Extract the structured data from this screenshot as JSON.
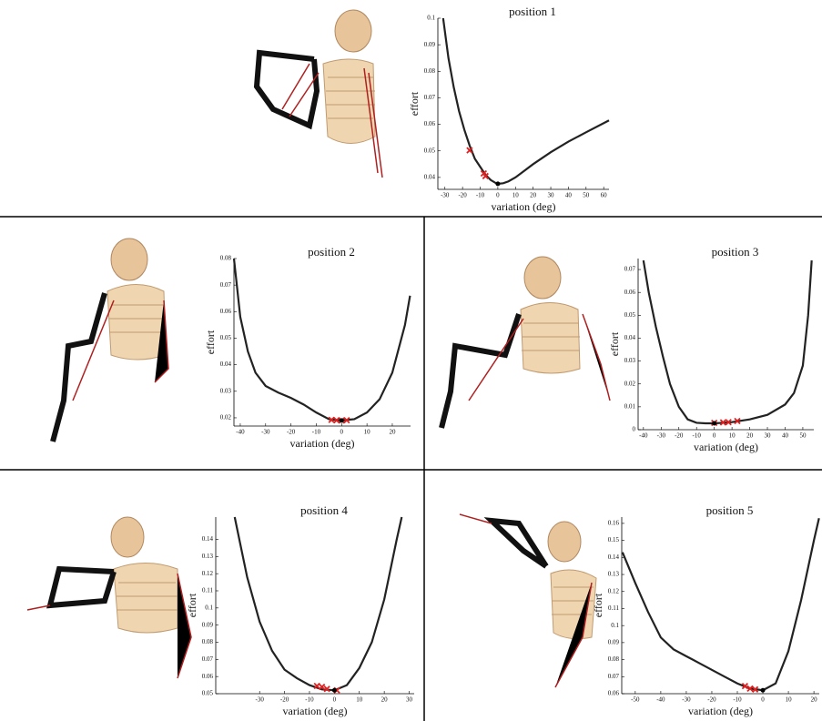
{
  "chart_data": [
    {
      "type": "line",
      "title": "position 1",
      "xlabel": "variation (deg)",
      "ylabel": "effort",
      "xlim": [
        -34,
        63
      ],
      "ylim": [
        0.0355,
        0.1
      ],
      "xticks": [
        -30,
        -20,
        -10,
        0,
        10,
        20,
        30,
        40,
        50,
        60
      ],
      "yticks": [
        0.04,
        0.05,
        0.06,
        0.07,
        0.08,
        0.09,
        0.1
      ],
      "series": [
        {
          "color": "#222222",
          "marker": "line",
          "x": [
            -31,
            -28,
            -25,
            -22,
            -19,
            -16,
            -13,
            -10,
            -7,
            -4,
            -1,
            0,
            3,
            6,
            10,
            15,
            20,
            30,
            40,
            50,
            63
          ],
          "values": [
            0.1,
            0.085,
            0.074,
            0.065,
            0.058,
            0.052,
            0.047,
            0.044,
            0.041,
            0.039,
            0.0378,
            0.0376,
            0.0378,
            0.0385,
            0.04,
            0.0425,
            0.045,
            0.0495,
            0.0535,
            0.057,
            0.0615
          ]
        },
        {
          "color": "#e02020",
          "marker": "cross",
          "x": [
            -16,
            -8,
            -7
          ],
          "values": [
            0.0502,
            0.0415,
            0.0405
          ]
        },
        {
          "color": "#000000",
          "marker": "dot",
          "x": [
            0
          ],
          "values": [
            0.0376
          ]
        }
      ]
    },
    {
      "type": "line",
      "title": "position 2",
      "xlabel": "variation (deg)",
      "ylabel": "effort",
      "xlim": [
        -42.5,
        27.2
      ],
      "ylim": [
        0.0169,
        0.08
      ],
      "xticks": [
        -40,
        -30,
        -20,
        -10,
        0,
        10,
        20
      ],
      "yticks": [
        0.02,
        0.03,
        0.04,
        0.05,
        0.06,
        0.07,
        0.08
      ],
      "series": [
        {
          "color": "#222222",
          "marker": "line",
          "x": [
            -42.5,
            -40,
            -37,
            -34,
            -30,
            -25,
            -20,
            -15,
            -10,
            -5,
            0,
            5,
            10,
            15,
            20,
            25,
            27
          ],
          "values": [
            0.08,
            0.058,
            0.045,
            0.037,
            0.032,
            0.0295,
            0.0275,
            0.025,
            0.022,
            0.0195,
            0.019,
            0.0195,
            0.022,
            0.027,
            0.037,
            0.055,
            0.066
          ]
        },
        {
          "color": "#e02020",
          "marker": "cross",
          "x": [
            -4,
            -2,
            0,
            2
          ],
          "values": [
            0.0192,
            0.0191,
            0.019,
            0.0191
          ]
        },
        {
          "color": "#000000",
          "marker": "dot",
          "x": [
            0
          ],
          "values": [
            0.019
          ]
        }
      ]
    },
    {
      "type": "line",
      "title": "position 3",
      "xlabel": "variation (deg)",
      "ylabel": "effort",
      "xlim": [
        -43,
        56.2
      ],
      "ylim": [
        0,
        0.0748
      ],
      "xticks": [
        -40,
        -30,
        -20,
        -10,
        0,
        10,
        20,
        30,
        40,
        50
      ],
      "yticks": [
        0,
        0.01,
        0.02,
        0.03,
        0.04,
        0.05,
        0.06,
        0.07
      ],
      "series": [
        {
          "color": "#222222",
          "marker": "line",
          "x": [
            -40,
            -37,
            -33,
            -29,
            -25,
            -20,
            -15,
            -10,
            -5,
            0,
            5,
            10,
            20,
            30,
            40,
            45,
            50,
            53,
            55
          ],
          "values": [
            0.074,
            0.06,
            0.045,
            0.032,
            0.02,
            0.01,
            0.0045,
            0.003,
            0.0028,
            0.0028,
            0.003,
            0.0033,
            0.0045,
            0.0065,
            0.011,
            0.016,
            0.028,
            0.05,
            0.074
          ]
        },
        {
          "color": "#e02020",
          "marker": "cross",
          "x": [
            0,
            5,
            8,
            13
          ],
          "values": [
            0.003,
            0.0032,
            0.0033,
            0.0038
          ]
        },
        {
          "color": "#000000",
          "marker": "dot",
          "x": [
            0
          ],
          "values": [
            0.0028
          ]
        }
      ]
    },
    {
      "type": "line",
      "title": "position 4",
      "xlabel": "variation (deg)",
      "ylabel": "effort",
      "xlim": [
        -47.6,
        32
      ],
      "ylim": [
        0.05,
        0.153
      ],
      "xticks": [
        -30,
        -20,
        -10,
        0,
        10,
        20,
        30
      ],
      "yticks": [
        0.05,
        0.06,
        0.07,
        0.08,
        0.09,
        0.1,
        0.11,
        0.12,
        0.13,
        0.14
      ],
      "series": [
        {
          "color": "#222222",
          "marker": "line",
          "x": [
            -40,
            -35,
            -30,
            -25,
            -20,
            -15,
            -10,
            -5,
            0,
            5,
            10,
            15,
            20,
            25,
            27
          ],
          "values": [
            0.153,
            0.118,
            0.092,
            0.075,
            0.064,
            0.059,
            0.055,
            0.0525,
            0.052,
            0.055,
            0.065,
            0.08,
            0.105,
            0.14,
            0.153
          ]
        },
        {
          "color": "#e02020",
          "marker": "cross",
          "x": [
            -7,
            -5,
            -3,
            1
          ],
          "values": [
            0.0545,
            0.054,
            0.0528,
            0.052
          ]
        },
        {
          "color": "#000000",
          "marker": "dot",
          "x": [
            0
          ],
          "values": [
            0.052
          ]
        }
      ]
    },
    {
      "type": "line",
      "title": "position 5",
      "xlabel": "variation (deg)",
      "ylabel": "effort",
      "xlim": [
        -55.3,
        22.1
      ],
      "ylim": [
        0.06,
        0.1637
      ],
      "xticks": [
        -50,
        -40,
        -30,
        -20,
        -10,
        0,
        10,
        20
      ],
      "yticks": [
        0.06,
        0.07,
        0.08,
        0.09,
        0.1,
        0.11,
        0.12,
        0.13,
        0.14,
        0.15,
        0.16
      ],
      "series": [
        {
          "color": "#222222",
          "marker": "line",
          "x": [
            -55,
            -50,
            -45,
            -40,
            -35,
            -30,
            -25,
            -20,
            -15,
            -10,
            -5,
            0,
            5,
            10,
            15,
            20,
            22
          ],
          "values": [
            0.143,
            0.125,
            0.108,
            0.093,
            0.086,
            0.082,
            0.078,
            0.074,
            0.07,
            0.066,
            0.063,
            0.062,
            0.066,
            0.085,
            0.115,
            0.15,
            0.163
          ]
        },
        {
          "color": "#e02020",
          "marker": "cross",
          "x": [
            -7,
            -5,
            -3
          ],
          "values": [
            0.0645,
            0.063,
            0.0625
          ]
        },
        {
          "color": "#000000",
          "marker": "dot",
          "x": [
            0
          ],
          "values": [
            0.062
          ]
        }
      ]
    }
  ]
}
